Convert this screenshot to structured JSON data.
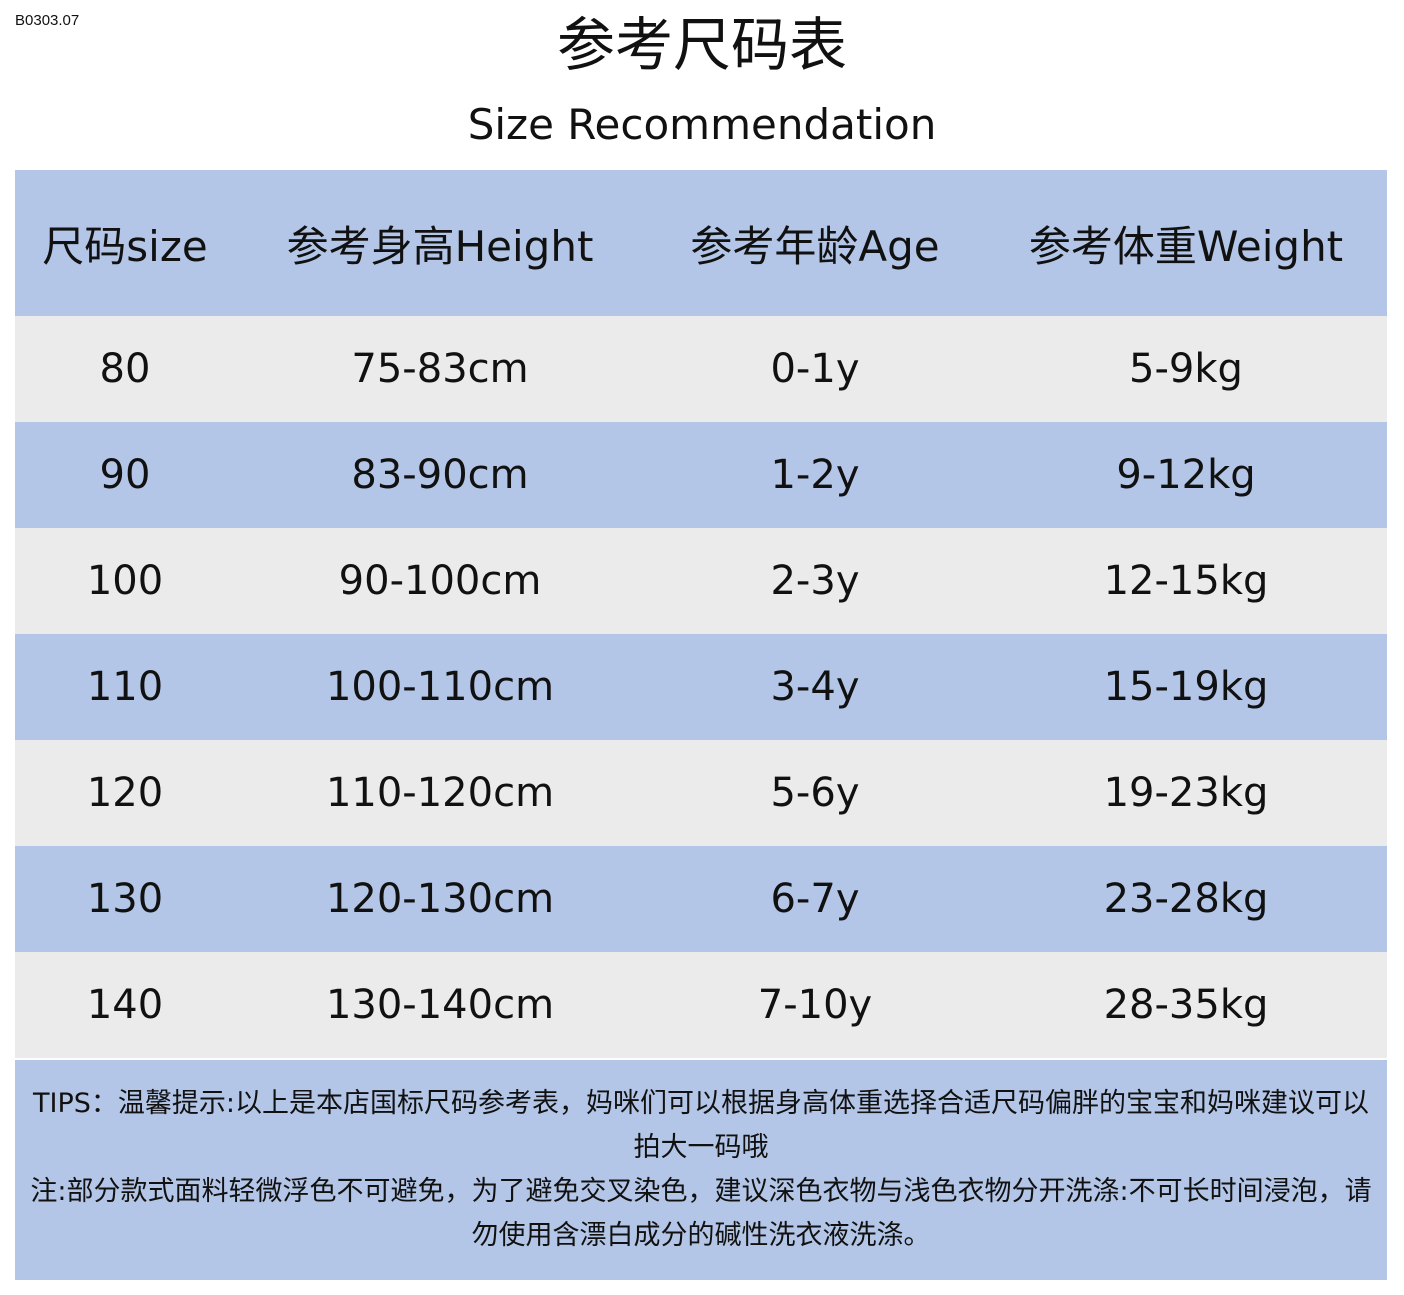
{
  "header": {
    "code": "B0303.07",
    "title": "参考尺码表",
    "subtitle": "Size Recommendation"
  },
  "table": {
    "columns": [
      "尺码size",
      "参考身高Height",
      "参考年龄Age",
      "参考体重Weight"
    ],
    "rows": [
      [
        "80",
        "75-83cm",
        "0-1y",
        "5-9kg"
      ],
      [
        "90",
        "83-90cm",
        "1-2y",
        "9-12kg"
      ],
      [
        "100",
        "90-100cm",
        "2-3y",
        "12-15kg"
      ],
      [
        "110",
        "100-110cm",
        "3-4y",
        "15-19kg"
      ],
      [
        "120",
        "110-120cm",
        "5-6y",
        "19-23kg"
      ],
      [
        "130",
        "120-130cm",
        "6-7y",
        "23-28kg"
      ],
      [
        "140",
        "130-140cm",
        "7-10y",
        "28-35kg"
      ]
    ]
  },
  "tips": [
    "TIPS：温馨提示:以上是本店国标尺码参考表，妈咪们可以根据身高体重选择合适尺码偏胖的宝宝和妈咪建议可以拍大一码哦",
    "注:部分款式面料轻微浮色不可避免，为了避免交叉染色，建议深色衣物与浅色衣物分开洗涤:不可长时间浸泡，请勿使用含漂白成分的碱性洗衣液洗涤。"
  ]
}
